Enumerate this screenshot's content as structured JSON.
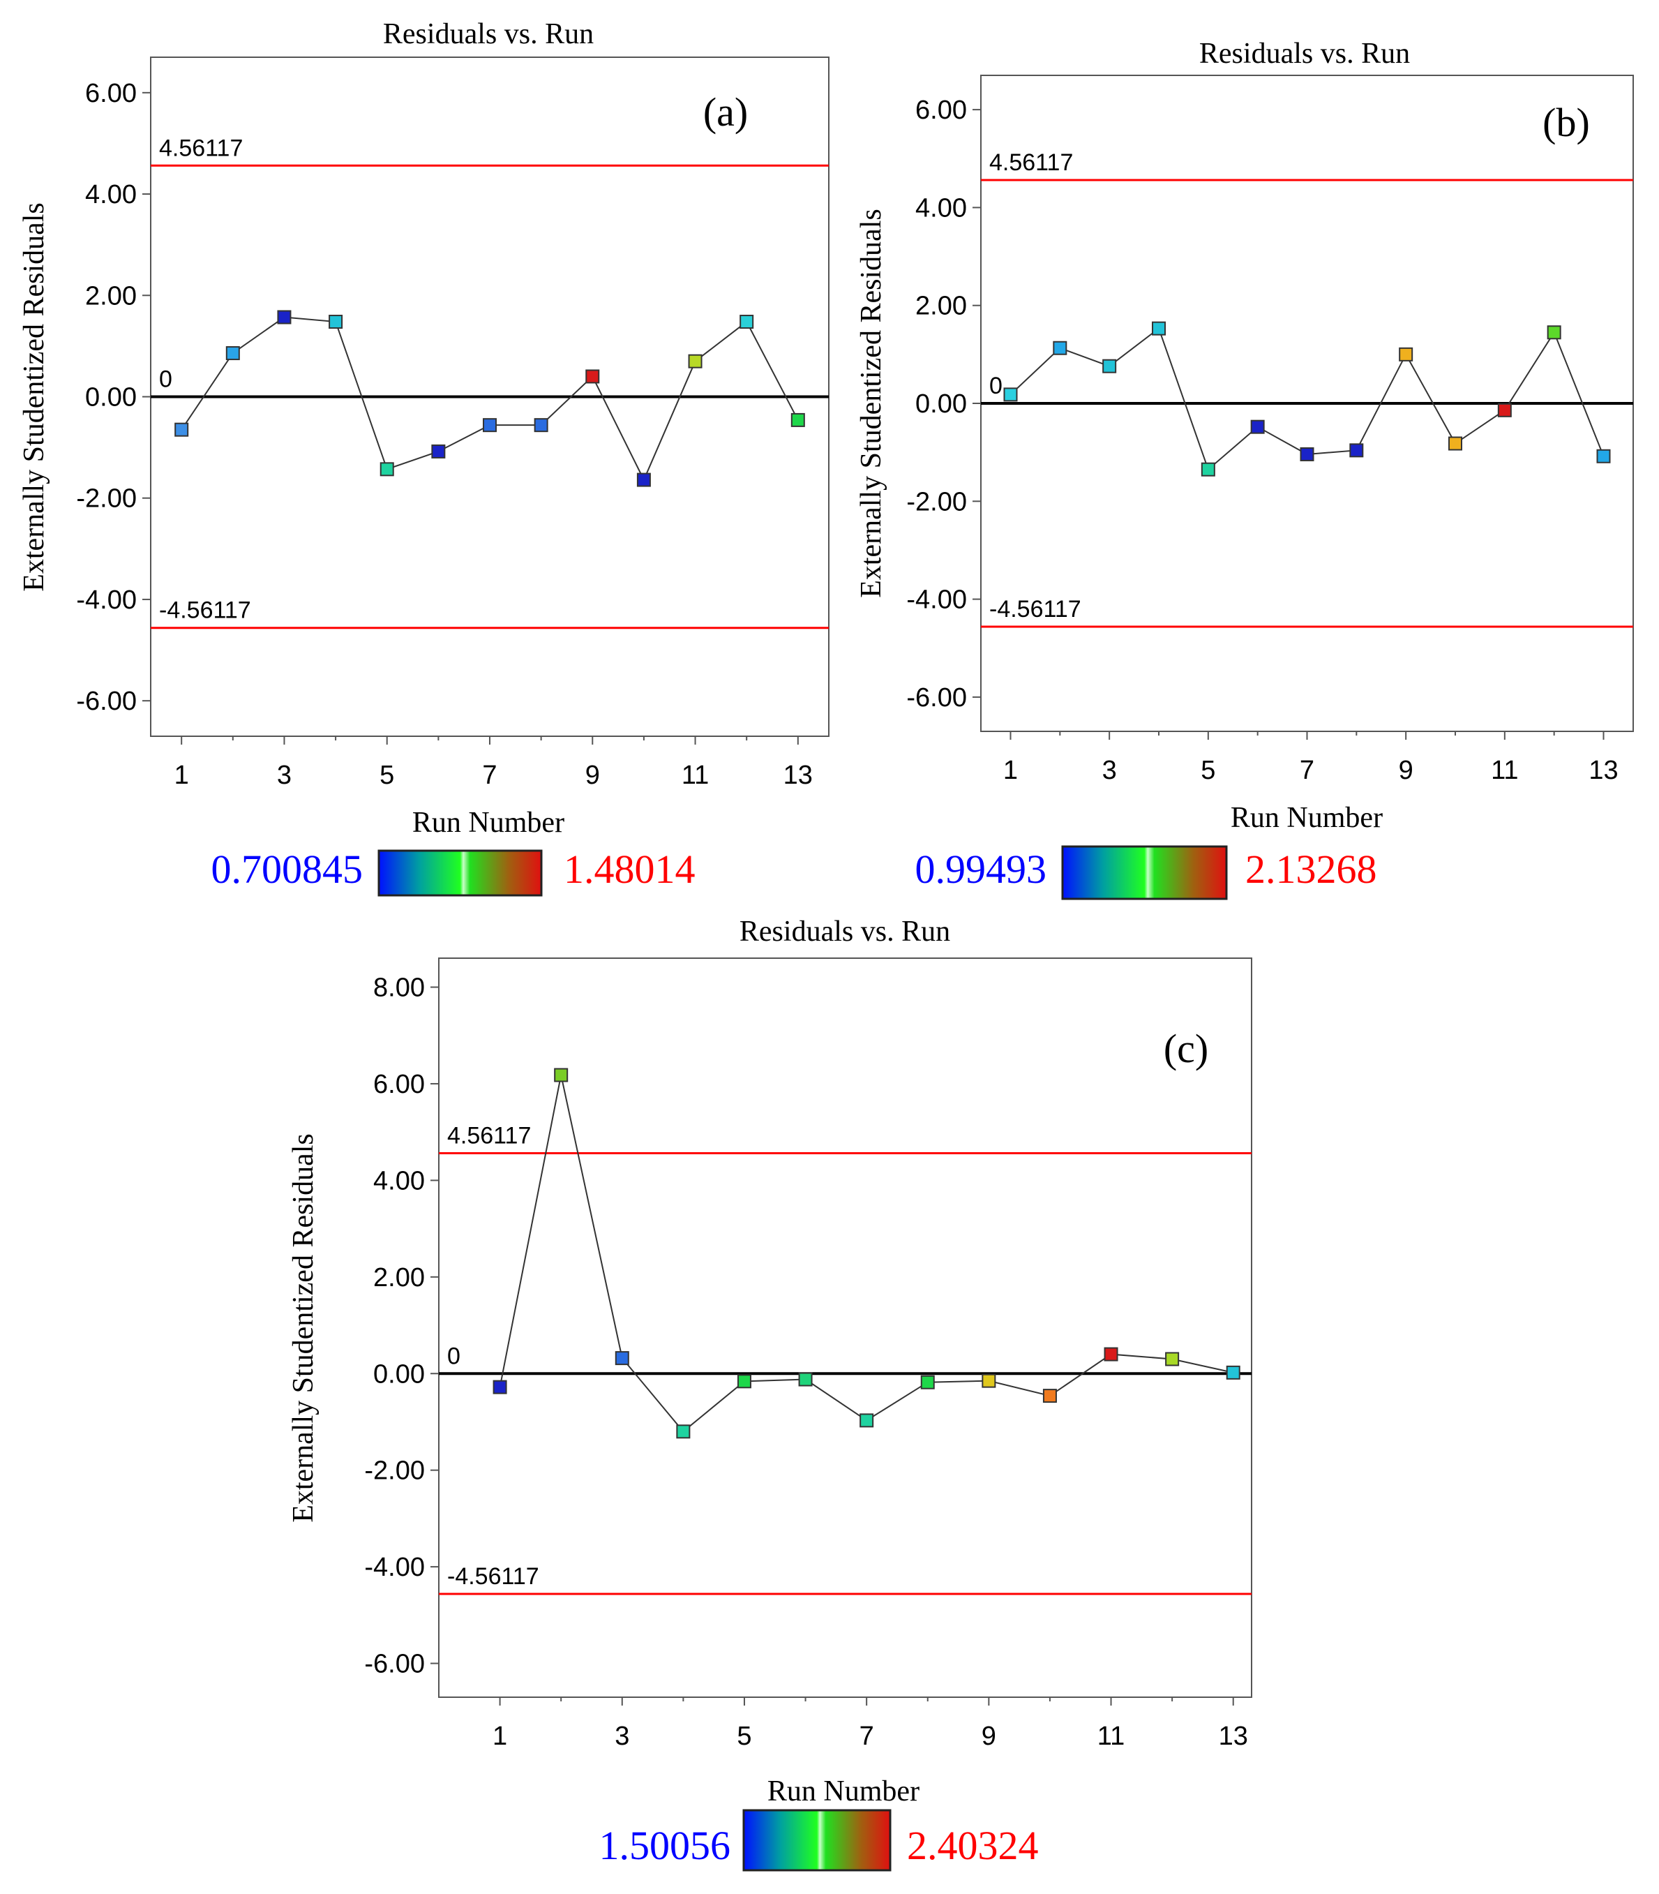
{
  "chart_data": [
    {
      "type": "scatter",
      "panel_label": "(a)",
      "title": "Residuals vs. Run",
      "xlabel": "Run Number",
      "ylabel": "Externally Studentized Residuals",
      "x": [
        1,
        2,
        3,
        4,
        5,
        6,
        7,
        8,
        9,
        10,
        11,
        12,
        13
      ],
      "y": [
        -0.65,
        0.86,
        1.57,
        1.48,
        -1.43,
        -1.08,
        -0.56,
        -0.56,
        0.4,
        -1.64,
        0.7,
        1.48,
        -0.46
      ],
      "point_colors": [
        "#3d8fe6",
        "#2aa4e8",
        "#1a23c8",
        "#22c3d8",
        "#1fd3a0",
        "#1a23c8",
        "#2a6ce0",
        "#2a6ce0",
        "#d91a1a",
        "#1a23c8",
        "#b8d926",
        "#2ad0d8",
        "#1ed74a"
      ],
      "xticks": [
        "1",
        "3",
        "5",
        "7",
        "9",
        "11",
        "13"
      ],
      "xtick_values": [
        1,
        3,
        5,
        7,
        9,
        11,
        13
      ],
      "yticks": [
        "6.00",
        "4.00",
        "2.00",
        "0.00",
        "-2.00",
        "-4.00",
        "-6.00"
      ],
      "ytick_values": [
        6,
        4,
        2,
        0,
        -2,
        -4,
        -6
      ],
      "xlim": [
        0.4,
        13.6
      ],
      "ylim": [
        -6.7,
        6.7
      ],
      "ref_lines": [
        {
          "value": 4.56117,
          "label": "4.56117",
          "color": "#ff0000"
        },
        {
          "value": 0,
          "label": "0",
          "color": "#000000"
        },
        {
          "value": -4.56117,
          "label": "-4.56117",
          "color": "#ff0000"
        }
      ],
      "colorbar": {
        "min_label": "0.700845",
        "max_label": "1.48014",
        "min_color": "#0000ff",
        "max_color": "#ff0000"
      }
    },
    {
      "type": "scatter",
      "panel_label": "(b)",
      "title": "Residuals vs. Run",
      "xlabel": "Run Number",
      "ylabel": "Externally Studentized Residuals",
      "x": [
        1,
        2,
        3,
        4,
        5,
        6,
        7,
        8,
        9,
        10,
        11,
        12,
        13
      ],
      "y": [
        0.18,
        1.13,
        0.76,
        1.53,
        -1.35,
        -0.48,
        -1.04,
        -0.96,
        1.0,
        -0.82,
        -0.14,
        1.45,
        -1.08
      ],
      "point_colors": [
        "#2ad0e0",
        "#22a8e8",
        "#22c3d8",
        "#22c3d8",
        "#1fd3a0",
        "#1a23c8",
        "#1a23c8",
        "#1a23c8",
        "#f0b01e",
        "#f0b01e",
        "#d91a1a",
        "#5cd82a",
        "#22a8e8"
      ],
      "xticks": [
        "1",
        "3",
        "5",
        "7",
        "9",
        "11",
        "13"
      ],
      "xtick_values": [
        1,
        3,
        5,
        7,
        9,
        11,
        13
      ],
      "yticks": [
        "6.00",
        "4.00",
        "2.00",
        "0.00",
        "-2.00",
        "-4.00",
        "-6.00"
      ],
      "ytick_values": [
        6,
        4,
        2,
        0,
        -2,
        -4,
        -6
      ],
      "xlim": [
        0.4,
        13.6
      ],
      "ylim": [
        -6.7,
        6.7
      ],
      "ref_lines": [
        {
          "value": 4.56117,
          "label": "4.56117",
          "color": "#ff0000"
        },
        {
          "value": 0,
          "label": "0",
          "color": "#000000"
        },
        {
          "value": -4.56117,
          "label": "-4.56117",
          "color": "#ff0000"
        }
      ],
      "colorbar": {
        "min_label": "0.99493",
        "max_label": "2.13268",
        "min_color": "#0000ff",
        "max_color": "#ff0000"
      }
    },
    {
      "type": "scatter",
      "panel_label": "(c)",
      "title": "Residuals vs. Run",
      "xlabel": "Run Number",
      "ylabel": "Externally Studentized Residuals",
      "x": [
        1,
        2,
        3,
        4,
        5,
        6,
        7,
        8,
        9,
        10,
        11,
        12,
        13
      ],
      "y": [
        -0.28,
        6.18,
        0.32,
        -1.2,
        -0.16,
        -0.12,
        -0.97,
        -0.18,
        -0.15,
        -0.46,
        0.4,
        0.3,
        0.02
      ],
      "point_colors": [
        "#1a23c8",
        "#7acd26",
        "#2a6ce0",
        "#1fd3a0",
        "#1ed74a",
        "#1fd37a",
        "#1fd3a0",
        "#1ed74a",
        "#e0c81e",
        "#f07a1e",
        "#d91a1a",
        "#a8d926",
        "#22c3d8"
      ],
      "xticks": [
        "1",
        "3",
        "5",
        "7",
        "9",
        "11",
        "13"
      ],
      "xtick_values": [
        1,
        3,
        5,
        7,
        9,
        11,
        13
      ],
      "yticks": [
        "8.00",
        "6.00",
        "4.00",
        "2.00",
        "0.00",
        "-2.00",
        "-4.00",
        "-6.00"
      ],
      "ytick_values": [
        8,
        6,
        4,
        2,
        0,
        -2,
        -4,
        -6
      ],
      "xlim": [
        0.0,
        13.3
      ],
      "ylim": [
        -6.7,
        8.6
      ],
      "ref_lines": [
        {
          "value": 4.56117,
          "label": "4.56117",
          "color": "#ff0000"
        },
        {
          "value": 0,
          "label": "0",
          "color": "#000000"
        },
        {
          "value": -4.56117,
          "label": "-4.56117",
          "color": "#ff0000"
        }
      ],
      "colorbar": {
        "min_label": "1.50056",
        "max_label": "2.40324",
        "min_color": "#0000ff",
        "max_color": "#ff0000"
      }
    }
  ]
}
